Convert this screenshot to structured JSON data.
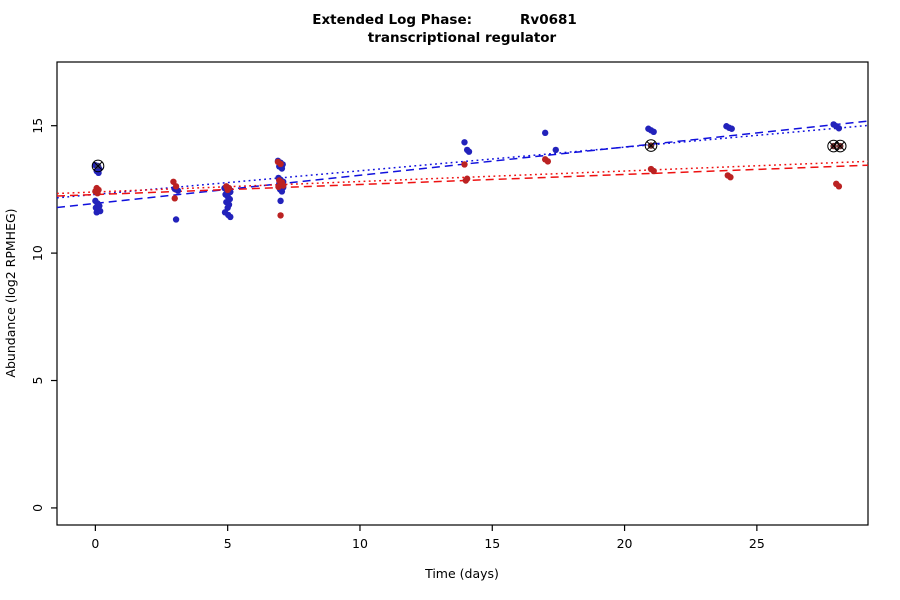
{
  "page": {
    "background": "#ffffff"
  },
  "chart_data": {
    "type": "scatter",
    "title": "Extended Log Phase:      Rv0681",
    "title_prefix": "Extended Log Phase:",
    "title_gene": "Rv0681",
    "subtitle": "transcriptional regulator",
    "xlabel": "Time  (days)",
    "ylabel": "Abundance  (log2 RPMHEG)",
    "xlim": [
      -1.45,
      29.2
    ],
    "ylim": [
      -0.67,
      17.5
    ],
    "xticks": [
      0,
      5,
      10,
      15,
      20,
      25
    ],
    "yticks": [
      0,
      5,
      10,
      15
    ],
    "grid": false,
    "legend": "none",
    "point_radius": 3.2,
    "colors": {
      "blue_points": "#2222bb",
      "red_points": "#bb2222",
      "blue_line": "#1111dd",
      "red_line": "#ee1111",
      "axis": "#000000"
    },
    "series": [
      {
        "name": "blue-condition",
        "color": "#2222bb",
        "points": [
          [
            0,
            13.45
          ],
          [
            0.1,
            13.38
          ],
          [
            0.15,
            13.3
          ],
          [
            0.05,
            13.22
          ],
          [
            0.12,
            13.15
          ],
          [
            0,
            12.05
          ],
          [
            0.08,
            11.95
          ],
          [
            0.15,
            11.85
          ],
          [
            0.02,
            11.78
          ],
          [
            0.1,
            11.72
          ],
          [
            0.18,
            11.65
          ],
          [
            0.05,
            11.6
          ],
          [
            3,
            12.52
          ],
          [
            3.12,
            12.45
          ],
          [
            3.05,
            11.32
          ],
          [
            4.88,
            12.55
          ],
          [
            4.95,
            12.5
          ],
          [
            5.02,
            12.45
          ],
          [
            5.1,
            12.4
          ],
          [
            4.92,
            12.3
          ],
          [
            5,
            12.22
          ],
          [
            5.08,
            12.12
          ],
          [
            4.95,
            12.0
          ],
          [
            5.05,
            11.9
          ],
          [
            5,
            11.78
          ],
          [
            4.9,
            11.6
          ],
          [
            5.02,
            11.5
          ],
          [
            5.1,
            11.42
          ],
          [
            6.9,
            13.62
          ],
          [
            7,
            13.55
          ],
          [
            7.08,
            13.48
          ],
          [
            6.95,
            13.4
          ],
          [
            7.05,
            13.32
          ],
          [
            6.92,
            12.95
          ],
          [
            7,
            12.88
          ],
          [
            7.1,
            12.8
          ],
          [
            6.95,
            12.72
          ],
          [
            7.02,
            12.65
          ],
          [
            7.1,
            12.58
          ],
          [
            6.98,
            12.5
          ],
          [
            7.05,
            12.42
          ],
          [
            7,
            12.05
          ],
          [
            13.95,
            14.35
          ],
          [
            14.05,
            14.05
          ],
          [
            14.12,
            13.98
          ],
          [
            17,
            14.72
          ],
          [
            17.4,
            14.05
          ],
          [
            20.9,
            14.88
          ],
          [
            21,
            14.82
          ],
          [
            21.1,
            14.76
          ],
          [
            23.85,
            14.98
          ],
          [
            23.95,
            14.92
          ],
          [
            24.05,
            14.88
          ],
          [
            27.9,
            15.05
          ],
          [
            28,
            14.98
          ],
          [
            28.1,
            14.9
          ]
        ]
      },
      {
        "name": "red-condition",
        "color": "#bb2222",
        "points": [
          [
            0.05,
            12.55
          ],
          [
            0.12,
            12.48
          ],
          [
            0,
            12.42
          ],
          [
            0.08,
            12.35
          ],
          [
            2.95,
            12.8
          ],
          [
            3.05,
            12.62
          ],
          [
            3,
            12.15
          ],
          [
            4.95,
            12.62
          ],
          [
            5.05,
            12.55
          ],
          [
            5,
            12.48
          ],
          [
            6.9,
            13.58
          ],
          [
            7,
            13.5
          ],
          [
            6.95,
            12.85
          ],
          [
            7.05,
            12.78
          ],
          [
            7,
            12.72
          ],
          [
            7.1,
            12.65
          ],
          [
            6.92,
            12.6
          ],
          [
            7,
            11.48
          ],
          [
            13.95,
            13.48
          ],
          [
            14.05,
            12.92
          ],
          [
            14,
            12.85
          ],
          [
            17,
            13.68
          ],
          [
            17.1,
            13.6
          ],
          [
            21,
            13.3
          ],
          [
            21.1,
            13.22
          ],
          [
            23.9,
            13.05
          ],
          [
            24,
            12.98
          ],
          [
            28,
            12.72
          ],
          [
            28.1,
            12.62
          ]
        ]
      }
    ],
    "highlight_points": {
      "marker": "circle-x",
      "points": [
        {
          "x": 0.1,
          "y": 13.42,
          "color": "#33337a"
        },
        {
          "x": 21,
          "y": 14.22,
          "color": "#6e2a2a"
        },
        {
          "x": 27.9,
          "y": 14.2,
          "color": "#6e2a2a"
        },
        {
          "x": 28.15,
          "y": 14.2,
          "color": "#6e2a2a"
        }
      ]
    },
    "trend_lines": [
      {
        "name": "blue-dashed-fit",
        "color": "#1111dd",
        "style": "dashed",
        "x1": -1.45,
        "y1": 11.79,
        "x2": 29.2,
        "y2": 15.18
      },
      {
        "name": "blue-dotted-fit",
        "color": "#1111dd",
        "style": "dotted",
        "x1": -1.45,
        "y1": 12.17,
        "x2": 29.2,
        "y2": 15.01
      },
      {
        "name": "red-dashed-fit",
        "color": "#ee1111",
        "style": "dashed",
        "x1": -1.45,
        "y1": 12.24,
        "x2": 29.2,
        "y2": 13.45
      },
      {
        "name": "red-dotted-fit",
        "color": "#ee1111",
        "style": "dotted",
        "x1": -1.45,
        "y1": 12.34,
        "x2": 29.2,
        "y2": 13.6
      }
    ]
  }
}
